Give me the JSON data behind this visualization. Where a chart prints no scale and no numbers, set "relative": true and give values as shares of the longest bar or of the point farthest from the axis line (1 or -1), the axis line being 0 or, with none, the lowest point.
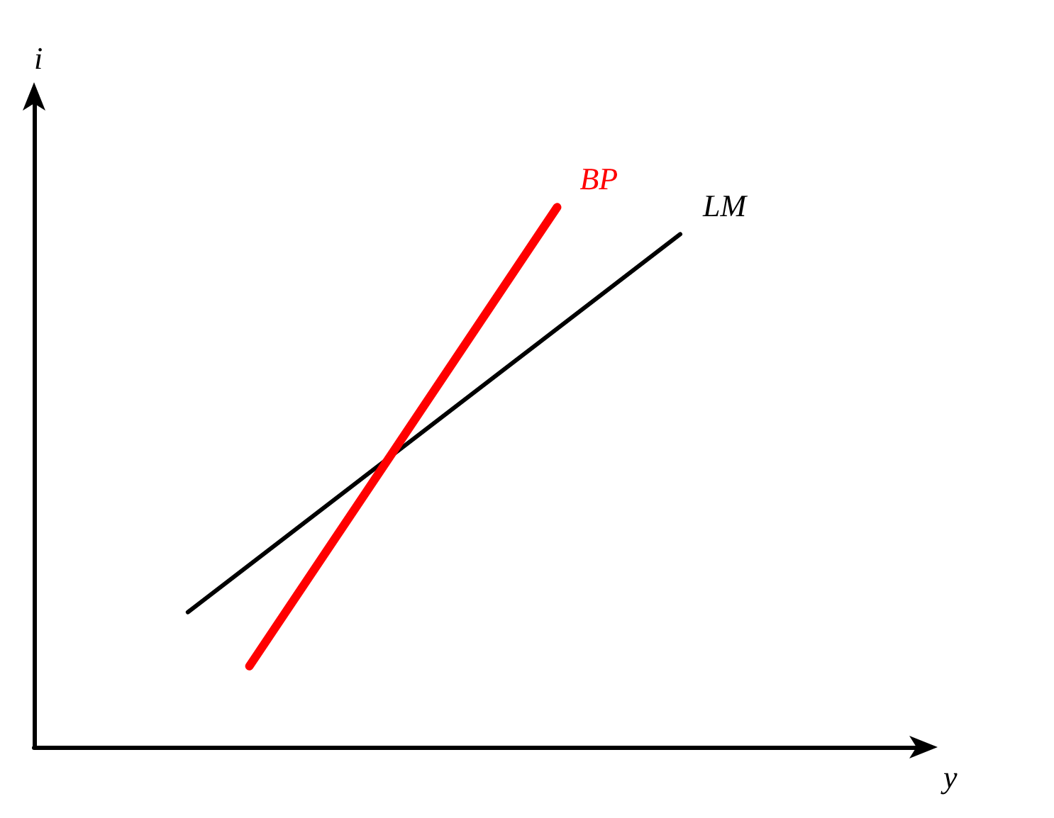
{
  "chart_data": {
    "type": "line",
    "relative": true,
    "xlabel": "y",
    "ylabel": "i",
    "marker": "none",
    "line_style": "solid",
    "legend": false,
    "categories": [
      null,
      null,
      null,
      null,
      null,
      null,
      null,
      null,
      null,
      null,
      null,
      null,
      null,
      null,
      null,
      null,
      null,
      null,
      null,
      null,
      null,
      null,
      null,
      null,
      null,
      null,
      null,
      null,
      null,
      null
    ],
    "series": [
      {
        "name": "LM",
        "color": "#000000",
        "values": [
          null,
          null,
          null,
          null,
          null,
          0.25,
          null,
          null,
          null,
          null,
          null,
          null,
          null,
          null,
          null,
          null,
          null,
          null,
          null,
          null,
          null,
          0.95,
          null,
          null,
          null,
          null,
          null,
          null,
          null,
          null
        ]
      },
      {
        "name": "BP",
        "color": "#ff0000",
        "values": [
          null,
          null,
          null,
          null,
          null,
          null,
          null,
          0.15,
          null,
          null,
          null,
          null,
          null,
          null,
          null,
          null,
          null,
          1,
          null,
          null,
          null,
          null,
          null,
          null,
          null,
          null,
          null,
          null,
          null,
          null
        ]
      }
    ]
  }
}
